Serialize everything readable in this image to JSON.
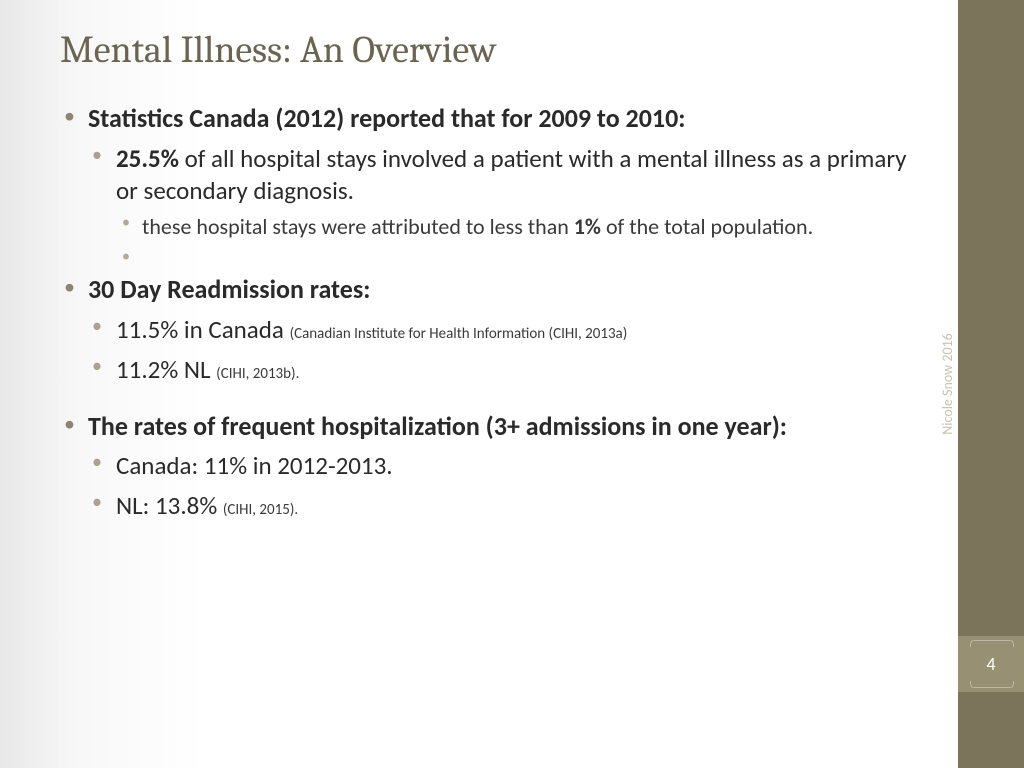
{
  "title": "Mental Illness: An Overview",
  "sidebar": {
    "author": "Nicole Snow 2016",
    "page_number": "4",
    "bar_color": "#7b735a",
    "accent_color": "#989073"
  },
  "bullets": {
    "b1": {
      "bold": "Statistics Canada (2012) reported that for 2009 to 2010:"
    },
    "b1a": {
      "bold": "25.5%",
      "rest": " of all hospital stays involved a patient with a mental illness as a primary or secondary diagnosis."
    },
    "b1a1": {
      "pre": "these hospital stays were attributed to less than ",
      "bold": "1%",
      "post": " of the total population."
    },
    "b2": {
      "bold": "30 Day Readmission rates:"
    },
    "b2a": {
      "text": "11.5% in Canada ",
      "cite": "(Canadian Institute for Health Information (CIHI, 2013a)"
    },
    "b2b": {
      "text": "11.2% NL ",
      "cite": "(CIHI, 2013b)."
    },
    "b3": {
      "bold": "The rates of frequent hospitalization (3+ admissions in one year):"
    },
    "b3a": {
      "text": "Canada: 11% in 2012-2013."
    },
    "b3b": {
      "text": "NL: 13.8% ",
      "cite": "(CIHI, 2015)."
    }
  },
  "style": {
    "title_color": "#6b6452",
    "title_fontsize": 38,
    "body_fontsize_l1": 26,
    "body_fontsize_l2": 25,
    "body_fontsize_l3": 22,
    "cite_fontsize": 15,
    "bullet_color_l1": "#8a8470",
    "bullet_color_l2": "#a8a28e",
    "bullet_color_l3": "#b0aa96",
    "background": "#ffffff"
  }
}
